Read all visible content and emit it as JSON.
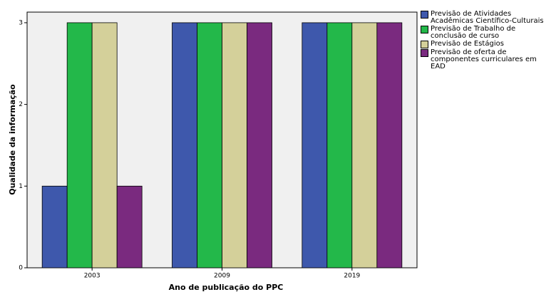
{
  "chart_data": {
    "type": "bar",
    "xlabel": "Ano de publicação do PPC",
    "ylabel": "Qualidade da informação",
    "categories": [
      "2003",
      "2009",
      "2019"
    ],
    "series": [
      {
        "name": "Previsão de Atividades Acadêmicas Científico-Culturais",
        "color": "#3e58ac",
        "values": [
          1,
          3,
          3
        ]
      },
      {
        "name": "Previsão de Trabalho de conclusão de curso",
        "color": "#23b84a",
        "values": [
          3,
          3,
          3
        ]
      },
      {
        "name": "Previsão de Estágios",
        "color": "#d4d09a",
        "values": [
          3,
          3,
          3
        ]
      },
      {
        "name": "Previsão de oferta de componentes curriculares em EAD",
        "color": "#7a2a7f",
        "values": [
          1,
          3,
          3
        ]
      }
    ],
    "ylim": [
      0,
      3.13
    ],
    "yticks": [
      0,
      1,
      2,
      3
    ],
    "legend": "right"
  }
}
